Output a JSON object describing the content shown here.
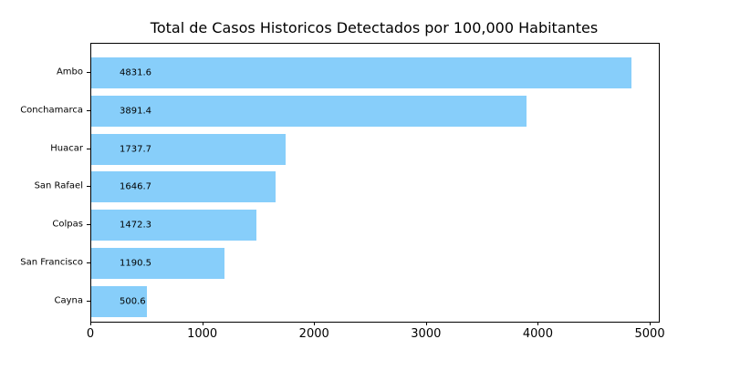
{
  "chart_data": {
    "type": "bar",
    "orientation": "horizontal",
    "title": "Total de Casos Historicos Detectados por 100,000 Habitantes",
    "categories": [
      "Ambo",
      "Conchamarca",
      "Huacar",
      "San Rafael",
      "Colpas",
      "San Francisco",
      "Cayna"
    ],
    "values": [
      4831.6,
      3891.4,
      1737.7,
      1646.7,
      1472.3,
      1190.5,
      500.6
    ],
    "value_labels": [
      "4831.6",
      "3891.4",
      "1737.7",
      "1646.7",
      "1472.3",
      "1190.5",
      "500.6"
    ],
    "x_ticks": [
      0,
      1000,
      2000,
      3000,
      4000,
      5000
    ],
    "x_tick_labels": [
      "0",
      "1000",
      "2000",
      "3000",
      "4000",
      "5000"
    ],
    "xlim": [
      0,
      5073
    ],
    "xlabel": "",
    "ylabel": "",
    "grid": false,
    "legend": null,
    "bar_color": "#87CEFA",
    "text_color": "#000000",
    "spine_color": "#000000",
    "background_color": "#ffffff"
  }
}
